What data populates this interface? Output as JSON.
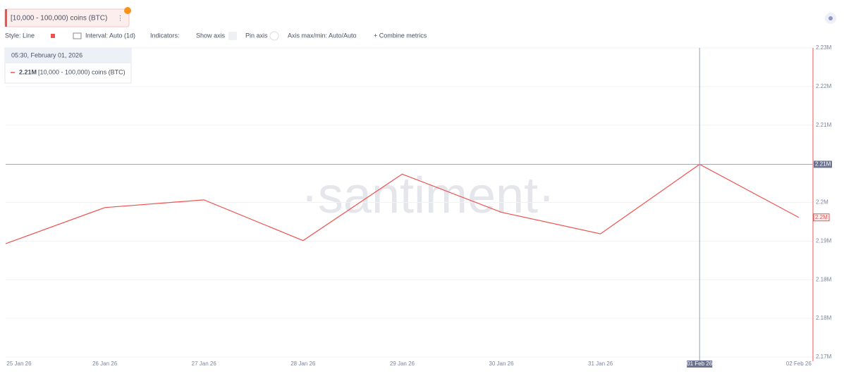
{
  "toolbar": {
    "style": "Style: Line",
    "interval": "Interval: Auto (1d)",
    "indicators": "Indicators:",
    "show_axis": "Show axis",
    "pin_axis": "Pin axis",
    "axis_minmax": "Axis max/min: Auto/Auto",
    "combine": "+ Combine metrics"
  },
  "tooltip": {
    "date": "05:30, February 01, 2026",
    "value_label": "2.21M"
  },
  "chart_data": {
    "type": "line",
    "watermark": "·santiment·",
    "categories": [
      "25 Jan 26",
      "26 Jan 26",
      "27 Jan 26",
      "28 Jan 26",
      "29 Jan 26",
      "30 Jan 26",
      "31 Jan 26",
      "01 Feb 26",
      "02 Feb 26"
    ],
    "series": [
      {
        "name": "[10,000 - 100,000) coins (BTC)",
        "color": "#ef5350",
        "values": [
          2192000,
          2199000,
          2200500,
          2192600,
          2205500,
          2198100,
          2193900,
          2207400,
          2197100
        ]
      }
    ],
    "ylim": [
      2170000,
      2230000
    ],
    "yticks": [
      {
        "value": 2170000,
        "label": "2.17M"
      },
      {
        "value": 2177500,
        "label": "2.18M"
      },
      {
        "value": 2185000,
        "label": "2.18M"
      },
      {
        "value": 2192500,
        "label": "2.19M"
      },
      {
        "value": 2200000,
        "label": "2.2M"
      },
      {
        "value": 2215000,
        "label": "2.21M"
      },
      {
        "value": 2222500,
        "label": "2.22M"
      },
      {
        "value": 2230000,
        "label": "2.23M"
      }
    ],
    "crosshair_index": 7,
    "crosshair_label": "2.21M",
    "last_value_label": "2.2M",
    "grid": true
  }
}
